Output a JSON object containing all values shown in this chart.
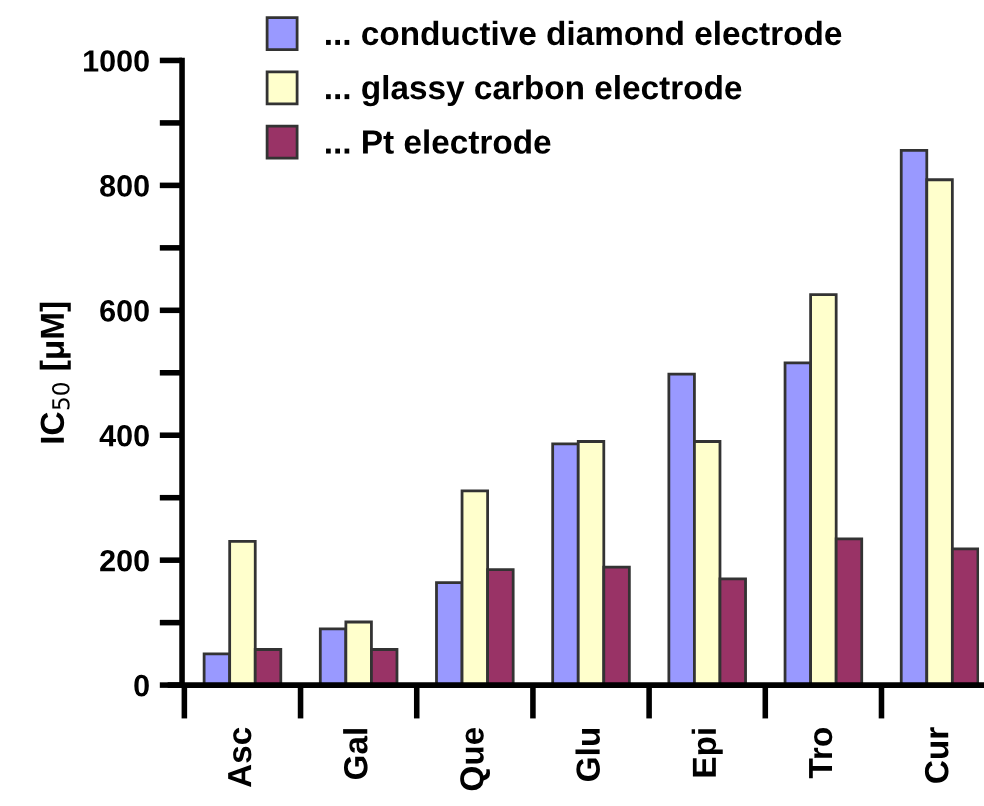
{
  "chart_data": {
    "type": "bar",
    "ylabel": "IC$_{50}$ [μM]",
    "categories": [
      "Asc",
      "Gal",
      "Que",
      "Glu",
      "Epi",
      "Tro",
      "Cur"
    ],
    "series": [
      {
        "name": "... conductive diamond electrode",
        "color": "#9999ff",
        "values": [
          50,
          90,
          164,
          386,
          498,
          516,
          856
        ]
      },
      {
        "name": "... glassy carbon electrode",
        "color": "#ffffcc",
        "values": [
          230,
          101,
          311,
          390,
          390,
          625,
          809
        ]
      },
      {
        "name": "... Pt electrode",
        "color": "#993366",
        "values": [
          57,
          57,
          185,
          189,
          170,
          234,
          218
        ]
      }
    ],
    "ylim": [
      0,
      1000
    ],
    "yticks": [
      0,
      {
        "value": 100,
        "label": null
      },
      200,
      {
        "value": 300,
        "label": null
      },
      400,
      {
        "value": 500,
        "label": null
      },
      600,
      {
        "value": 700,
        "label": null
      },
      800,
      {
        "value": 900,
        "label": null
      },
      1000
    ],
    "grid": false,
    "legend": "top"
  }
}
